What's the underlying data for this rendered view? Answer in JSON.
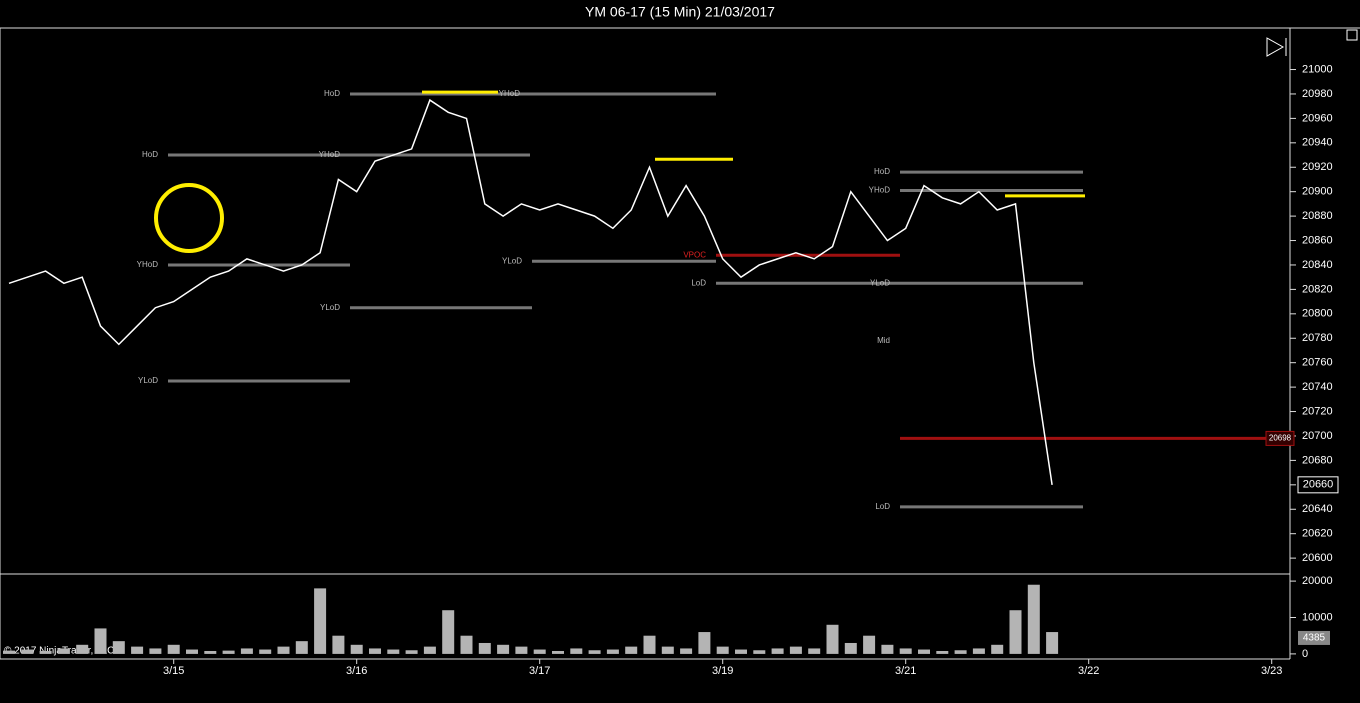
{
  "chart_data": [
    {
      "type": "line",
      "title": "YM 06-17 (15 Min)  21/03/2017",
      "color": "#ffffff",
      "categories": [
        null,
        null,
        null,
        null,
        null,
        null,
        null,
        null,
        null,
        "3/15",
        null,
        null,
        null,
        null,
        null,
        null,
        null,
        null,
        null,
        "3/16",
        null,
        null,
        null,
        null,
        null,
        null,
        null,
        null,
        null,
        "3/17",
        null,
        null,
        null,
        null,
        null,
        null,
        null,
        null,
        null,
        "3/19",
        null,
        null,
        null,
        null,
        null,
        null,
        null,
        null,
        null,
        "3/21",
        null,
        null,
        null,
        null,
        null,
        null,
        null,
        null,
        null,
        "3/22",
        null,
        null,
        null,
        null,
        null,
        null,
        null,
        null,
        null,
        "3/23"
      ],
      "values": [
        20825,
        20830,
        20835,
        20825,
        20830,
        20790,
        20775,
        20790,
        20805,
        20810,
        20820,
        20830,
        20835,
        20845,
        20840,
        20835,
        20840,
        20850,
        20910,
        20900,
        20925,
        20930,
        20935,
        20975,
        20965,
        20960,
        20890,
        20880,
        20890,
        20885,
        20890,
        20885,
        20880,
        20870,
        20885,
        20920,
        20880,
        20905,
        20880,
        20845,
        20830,
        20840,
        20845,
        20850,
        20845,
        20855,
        20900,
        20880,
        20860,
        20870,
        20905,
        20895,
        20890,
        20900,
        20885,
        20890,
        20760,
        20660,
        null,
        null,
        null,
        null,
        null,
        null,
        null,
        null,
        null,
        null,
        null,
        null
      ],
      "ylim": [
        20587,
        21034
      ],
      "yticks": [
        20600,
        20620,
        20640,
        20660,
        20680,
        20700,
        20720,
        20740,
        20760,
        20780,
        20800,
        20820,
        20840,
        20860,
        20880,
        20900,
        20920,
        20940,
        20960,
        20980,
        21000
      ],
      "levels": [
        {
          "label": "HoD",
          "value": 20930
        },
        {
          "label": "YHoD",
          "value": 20840
        },
        {
          "label": "YLoD",
          "value": 20745
        },
        {
          "label": "HoD",
          "value": 20980
        },
        {
          "label": "YHoD",
          "value": 20980
        },
        {
          "label": "YHoD",
          "value": 20930
        },
        {
          "label": "YLoD",
          "value": 20805
        },
        {
          "label": "YLoD",
          "value": 20843
        },
        {
          "label": "LoD",
          "value": 20825
        },
        {
          "label": "VPOC",
          "value": 20848
        },
        {
          "label": "HoD",
          "value": 20916
        },
        {
          "label": "YHoD",
          "value": 20901
        },
        {
          "label": "YLoD",
          "value": 20825
        },
        {
          "label": "Mid",
          "value": 20778
        },
        {
          "label": "LoD",
          "value": 20642
        }
      ],
      "vpoc": 20698,
      "last_price": 20660,
      "copyright": "© 2017 NinjaTrader, LLC"
    },
    {
      "type": "bar",
      "color": "#b4b4b4",
      "values": [
        900,
        1200,
        800,
        1500,
        2500,
        7000,
        3500,
        2000,
        1500,
        2500,
        1200,
        800,
        900,
        1500,
        1200,
        2000,
        3500,
        18000,
        5000,
        2500,
        1500,
        1200,
        1000,
        2000,
        12000,
        5000,
        3000,
        2500,
        2000,
        1200,
        800,
        1500,
        1000,
        1200,
        2000,
        5000,
        2000,
        1500,
        6000,
        2000,
        1200,
        1000,
        1500,
        2000,
        1500,
        8000,
        3000,
        5000,
        2500,
        1500,
        1200,
        800,
        1000,
        1500,
        2500,
        12000,
        19000,
        6000,
        null,
        null,
        null,
        null,
        null,
        null,
        null,
        null,
        null,
        null,
        null,
        null
      ],
      "ylim": [
        -1400,
        21400
      ],
      "yticks": [
        0,
        10000,
        20000
      ],
      "last_value": 4385
    }
  ]
}
